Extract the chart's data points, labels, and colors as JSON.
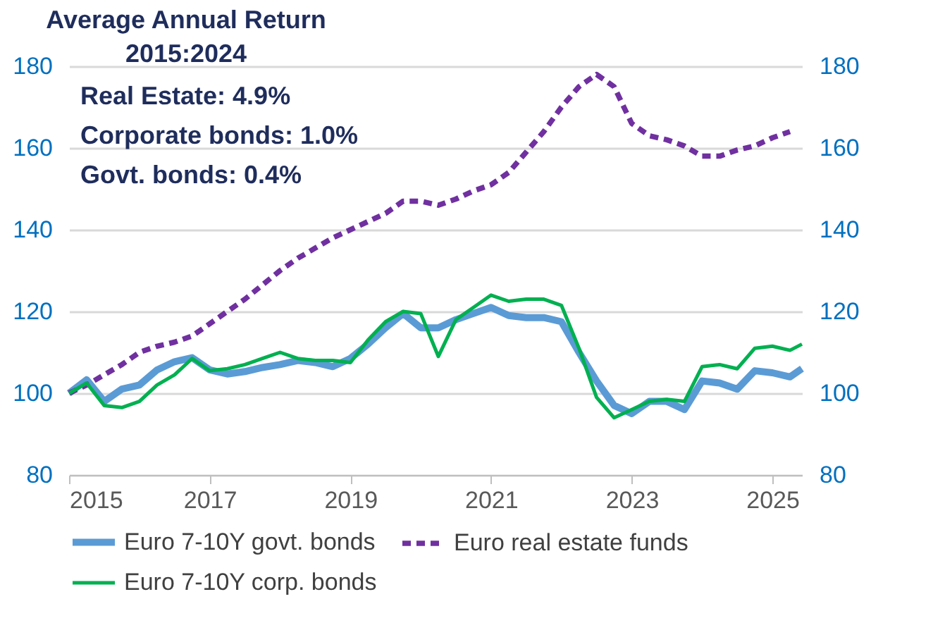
{
  "chart_data": {
    "type": "line",
    "title": "Average Annual Return",
    "subtitle": "2015:2024",
    "annotations": [
      "Real Estate:       4.9%",
      "Corporate bonds: 1.0%",
      "Govt. bonds:       0.4%"
    ],
    "xlim": [
      2015,
      2025.42
    ],
    "xticks": [
      2015,
      2017,
      2019,
      2021,
      2023,
      2025
    ],
    "ylim": [
      80,
      180
    ],
    "yticks": [
      80,
      100,
      120,
      140,
      160,
      180
    ],
    "y2lim": [
      80,
      180
    ],
    "y2ticks": [
      80,
      100,
      120,
      140,
      160,
      180
    ],
    "grid": "y",
    "legend": "bottom",
    "series": [
      {
        "name": "Euro 7-10Y govt. bonds",
        "color": "#5b9bd5",
        "line_style": "solid",
        "x": [
          2015,
          2015.25,
          2015.5,
          2015.75,
          2016,
          2016.25,
          2016.5,
          2016.75,
          2017,
          2017.25,
          2017.5,
          2017.75,
          2018,
          2018.25,
          2018.5,
          2018.75,
          2019,
          2019.25,
          2019.5,
          2019.75,
          2020,
          2020.25,
          2020.5,
          2020.75,
          2021,
          2021.25,
          2021.5,
          2021.75,
          2022,
          2022.25,
          2022.5,
          2022.75,
          2023,
          2023.25,
          2023.5,
          2023.75,
          2024,
          2024.25,
          2024.5,
          2024.75,
          2025,
          2025.25,
          2025.42
        ],
        "values": [
          100,
          103.3,
          98,
          101,
          102,
          105.7,
          107.7,
          108.7,
          105.7,
          104.7,
          105.3,
          106.3,
          107,
          108,
          107.5,
          106.5,
          108.5,
          112,
          116,
          119.5,
          116,
          116,
          118,
          119.5,
          121,
          119,
          118.5,
          118.5,
          117.5,
          110,
          103,
          97,
          95,
          98,
          98,
          96,
          103,
          102.5,
          101,
          105.5,
          105,
          104,
          106
        ]
      },
      {
        "name": "Euro real estate funds",
        "color": "#7030a0",
        "line_style": "dashed",
        "x": [
          2015,
          2015.25,
          2015.5,
          2015.75,
          2016,
          2016.25,
          2016.5,
          2016.75,
          2017,
          2017.25,
          2017.5,
          2017.75,
          2018,
          2018.25,
          2018.5,
          2018.75,
          2019,
          2019.25,
          2019.5,
          2019.75,
          2020,
          2020.25,
          2020.5,
          2020.75,
          2021,
          2021.25,
          2021.5,
          2021.75,
          2022,
          2022.25,
          2022.5,
          2022.75,
          2023,
          2023.25,
          2023.5,
          2023.75,
          2024,
          2024.25,
          2024.5,
          2024.75,
          2025,
          2025.25
        ],
        "values": [
          100,
          102,
          104.5,
          107,
          110,
          111.5,
          112.5,
          114,
          117,
          120,
          123,
          126.5,
          130,
          133,
          135.5,
          138,
          140,
          142,
          144,
          147,
          147,
          146,
          147.5,
          149.5,
          151,
          154,
          159,
          164,
          170,
          175,
          178,
          175,
          166,
          163,
          162,
          160.5,
          158,
          158,
          159.5,
          160.5,
          162.5,
          164
        ]
      },
      {
        "name": "Euro 7-10Y corp. bonds",
        "color": "#00b050",
        "line_style": "solid",
        "x": [
          2015,
          2015.25,
          2015.5,
          2015.75,
          2016,
          2016.25,
          2016.5,
          2016.75,
          2017,
          2017.25,
          2017.5,
          2017.75,
          2018,
          2018.25,
          2018.5,
          2018.75,
          2019,
          2019.25,
          2019.5,
          2019.75,
          2020,
          2020.25,
          2020.5,
          2020.75,
          2021,
          2021.25,
          2021.5,
          2021.75,
          2022,
          2022.25,
          2022.5,
          2022.75,
          2023,
          2023.25,
          2023.5,
          2023.75,
          2024,
          2024.25,
          2024.5,
          2024.75,
          2025,
          2025.25,
          2025.42
        ],
        "values": [
          100,
          102.5,
          97,
          96.5,
          98,
          102,
          104.5,
          108.5,
          105.5,
          106,
          107,
          108.5,
          110,
          108.5,
          108,
          108,
          107.5,
          113,
          117.5,
          120,
          119.5,
          109,
          118,
          121,
          124,
          122.5,
          123,
          123,
          121.5,
          111,
          99,
          94,
          96,
          98,
          98.5,
          98,
          106.5,
          107,
          106,
          111,
          111.5,
          110.5,
          112
        ]
      }
    ]
  }
}
